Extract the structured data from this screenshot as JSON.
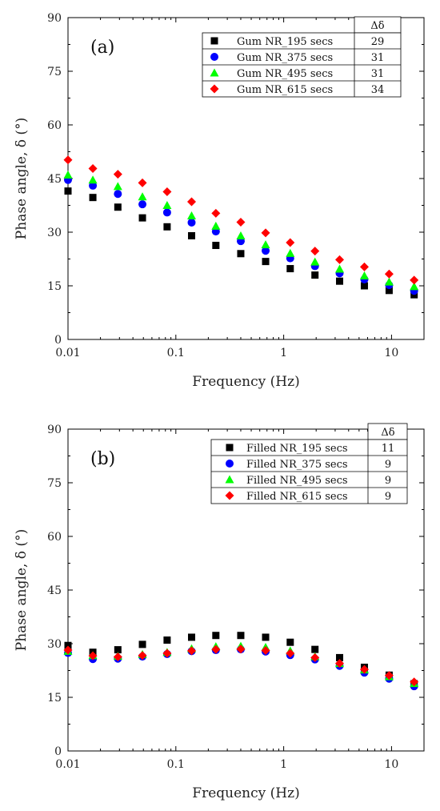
{
  "chart_data": [
    {
      "type": "scatter",
      "panel_label": "(a)",
      "xlabel": "Frequency (Hz)",
      "ylabel": "Phase angle, δ (°)",
      "x_scale": "log",
      "xlim": [
        0.01,
        20
      ],
      "ylim": [
        0,
        90
      ],
      "x_ticks": [
        0.01,
        0.1,
        1,
        10
      ],
      "x_tick_labels": [
        "0.01",
        "0.1",
        "1",
        "10"
      ],
      "y_ticks": [
        0,
        15,
        30,
        45,
        60,
        75,
        90
      ],
      "y_tick_labels": [
        "0",
        "15",
        "30",
        "45",
        "60",
        "75",
        "90"
      ],
      "grid": false,
      "legend_position": "top-right",
      "legend_header": "Δδ",
      "x": [
        0.01,
        0.017,
        0.029,
        0.049,
        0.083,
        0.14,
        0.235,
        0.4,
        0.68,
        1.15,
        1.95,
        3.3,
        5.6,
        9.5,
        16.2
      ],
      "series": [
        {
          "name": "Gum NR_195 secs",
          "delta": "29",
          "marker": "square",
          "color": "#000000",
          "values": [
            41.5,
            39.7,
            37.0,
            34.0,
            31.5,
            29.0,
            26.3,
            24.0,
            21.8,
            19.8,
            18.0,
            16.3,
            15.0,
            13.7,
            12.5
          ]
        },
        {
          "name": "Gum NR_375 secs",
          "delta": "31",
          "marker": "circle",
          "color": "#0000ff",
          "values": [
            44.6,
            43.0,
            40.7,
            37.8,
            35.5,
            32.7,
            30.2,
            27.5,
            24.8,
            22.7,
            20.5,
            18.5,
            16.8,
            15.2,
            13.6
          ]
        },
        {
          "name": "Gum NR_495 secs",
          "delta": "31",
          "marker": "triangle",
          "color": "#00ff00",
          "values": [
            46.0,
            44.6,
            42.8,
            39.9,
            37.5,
            34.6,
            31.7,
            29.0,
            26.5,
            24.1,
            21.7,
            19.7,
            17.8,
            16.1,
            14.8
          ]
        },
        {
          "name": "Gum NR_615 secs",
          "delta": "34",
          "marker": "diamond",
          "color": "#ff0000",
          "values": [
            50.2,
            47.8,
            46.2,
            43.8,
            41.3,
            38.5,
            35.3,
            32.8,
            29.8,
            27.1,
            24.7,
            22.3,
            20.3,
            18.3,
            16.6
          ]
        }
      ]
    },
    {
      "type": "scatter",
      "panel_label": "(b)",
      "xlabel": "Frequency (Hz)",
      "ylabel": "Phase angle, δ (°)",
      "x_scale": "log",
      "xlim": [
        0.01,
        20
      ],
      "ylim": [
        0,
        90
      ],
      "x_ticks": [
        0.01,
        0.1,
        1,
        10
      ],
      "x_tick_labels": [
        "0.01",
        "0.1",
        "1",
        "10"
      ],
      "y_ticks": [
        0,
        15,
        30,
        45,
        60,
        75,
        90
      ],
      "y_tick_labels": [
        "0",
        "15",
        "30",
        "45",
        "60",
        "75",
        "90"
      ],
      "grid": false,
      "legend_position": "top-right",
      "legend_header": "Δδ",
      "x": [
        0.01,
        0.017,
        0.029,
        0.049,
        0.083,
        0.14,
        0.235,
        0.4,
        0.68,
        1.15,
        1.95,
        3.3,
        5.6,
        9.5,
        16.2
      ],
      "series": [
        {
          "name": "Filled NR_195 secs",
          "delta": "11",
          "marker": "square",
          "color": "#000000",
          "values": [
            29.5,
            27.6,
            28.3,
            29.8,
            31.0,
            31.8,
            32.3,
            32.3,
            31.8,
            30.4,
            28.4,
            26.1,
            23.4,
            21.2,
            18.8
          ]
        },
        {
          "name": "Filled NR_375 secs",
          "delta": "9",
          "marker": "circle",
          "color": "#0000ff",
          "values": [
            27.4,
            25.7,
            25.8,
            26.4,
            27.1,
            27.9,
            28.2,
            28.4,
            27.8,
            26.8,
            25.6,
            23.8,
            21.9,
            20.2,
            18.1
          ]
        },
        {
          "name": "Filled NR_495 secs",
          "delta": "9",
          "marker": "triangle",
          "color": "#00ff00",
          "values": [
            27.9,
            26.7,
            26.5,
            27.0,
            27.6,
            28.6,
            29.2,
            29.3,
            29.0,
            28.0,
            26.4,
            24.5,
            22.7,
            20.8,
            18.9
          ]
        },
        {
          "name": "Filled NR_615 secs",
          "delta": "9",
          "marker": "diamond",
          "color": "#ff0000",
          "values": [
            28.2,
            26.6,
            26.3,
            26.7,
            27.3,
            28.0,
            28.4,
            28.5,
            28.1,
            27.3,
            26.1,
            24.5,
            22.8,
            21.1,
            19.3
          ]
        }
      ]
    }
  ]
}
